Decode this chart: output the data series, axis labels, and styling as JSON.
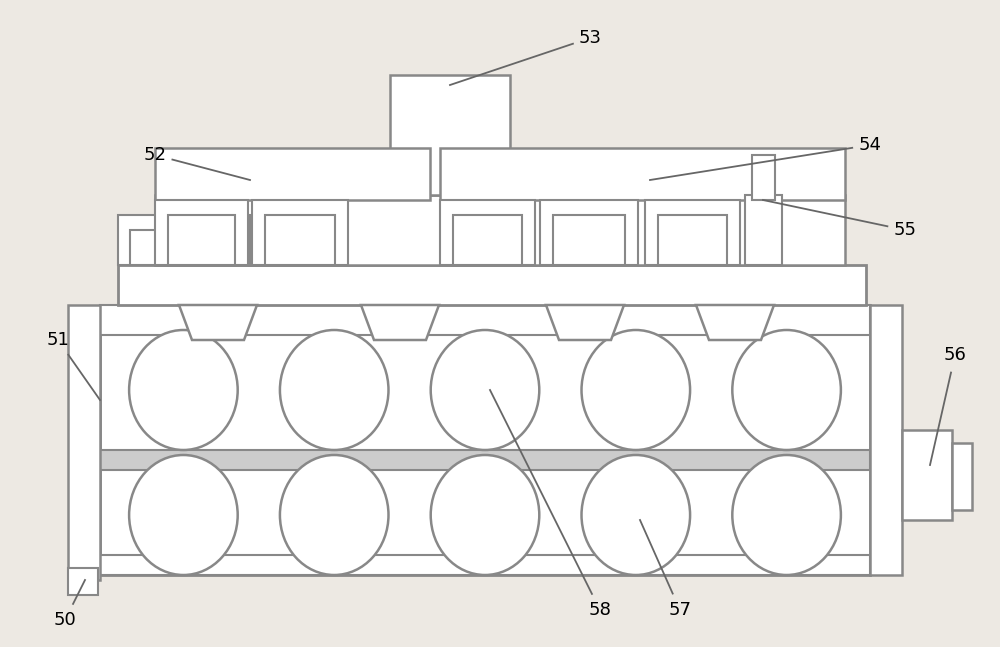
{
  "bg_color": "#ede9e3",
  "lc": "#888888",
  "lw": 1.8,
  "fc": "#ffffff",
  "fig_w": 10.0,
  "fig_h": 6.47,
  "label_fs": 13
}
